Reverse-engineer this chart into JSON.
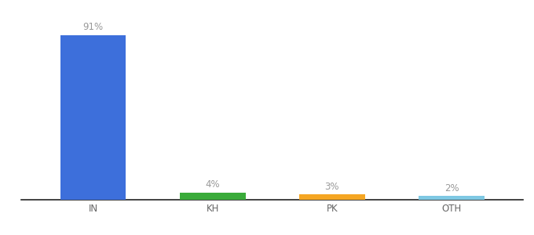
{
  "categories": [
    "IN",
    "KH",
    "PK",
    "OTH"
  ],
  "values": [
    91,
    4,
    3,
    2
  ],
  "labels": [
    "91%",
    "4%",
    "3%",
    "2%"
  ],
  "bar_colors": [
    "#3d6fdb",
    "#3aab3a",
    "#f5a623",
    "#7ec8e3"
  ],
  "background_color": "#ffffff",
  "ylim": [
    0,
    100
  ],
  "label_fontsize": 8.5,
  "tick_fontsize": 8.5,
  "bar_width": 0.55,
  "label_color": "#999999",
  "tick_color": "#666666",
  "spine_color": "#222222"
}
